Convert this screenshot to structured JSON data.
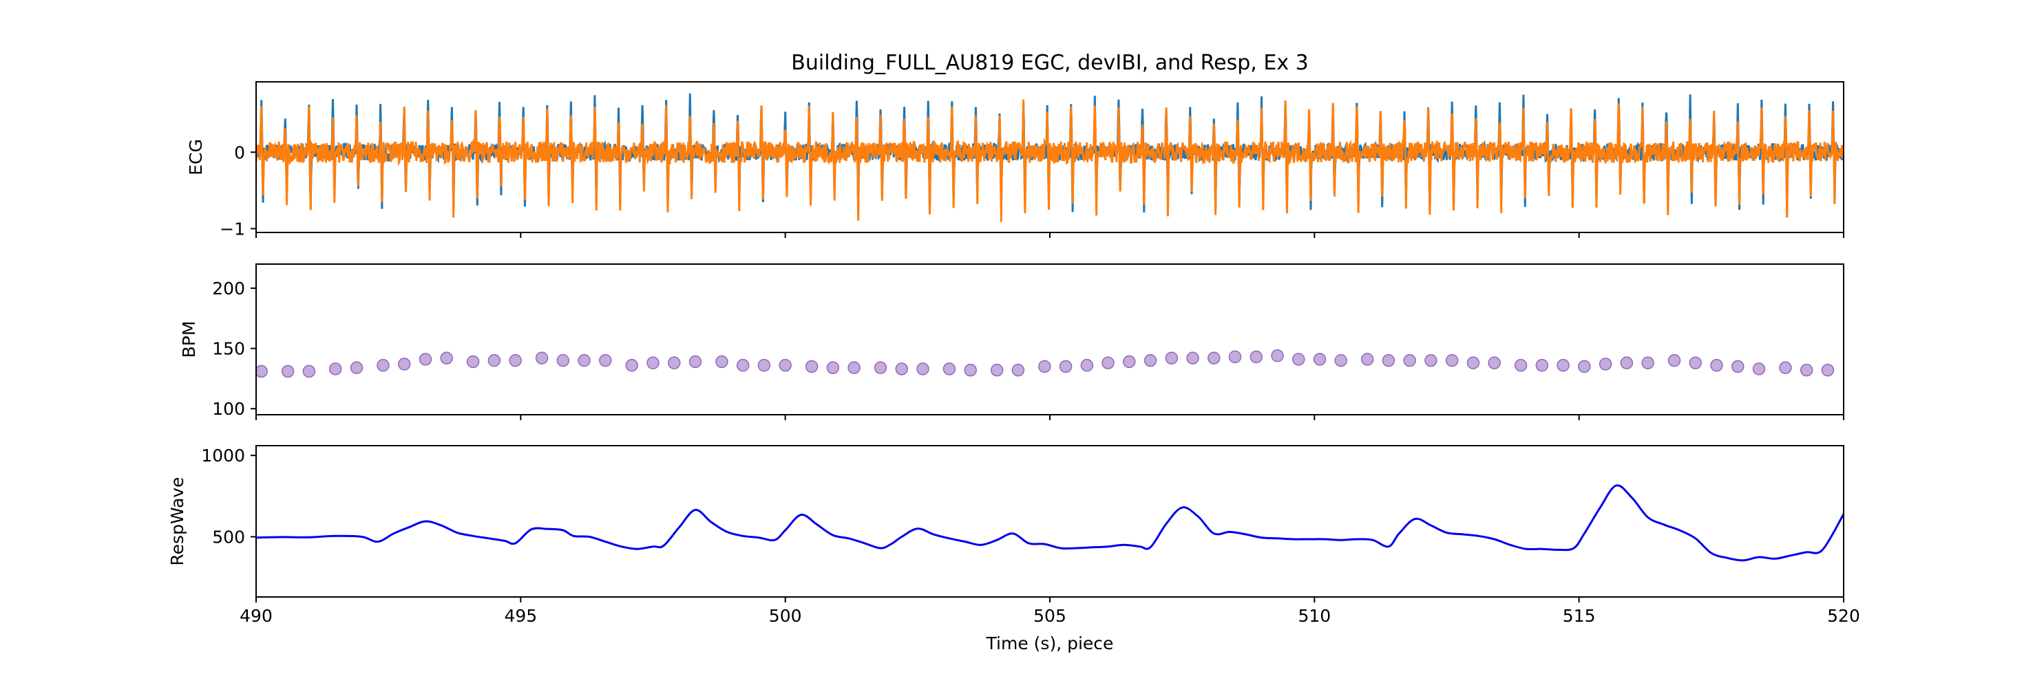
{
  "figure": {
    "title": "Building_FULL_AU819 EGC, devIBI, and Resp, Ex 3",
    "xlabel": "Time (s), piece"
  },
  "chart_data": [
    {
      "type": "line",
      "panel": "ecg",
      "ylabel": "ECG",
      "xlim": [
        490,
        520
      ],
      "ylim": [
        -1.05,
        0.92
      ],
      "xticks": [
        490,
        495,
        500,
        505,
        510,
        515,
        520
      ],
      "yticks": [
        -1,
        0
      ],
      "grid": false,
      "series": [
        {
          "color": "#1f77b4",
          "r_peak_times": [
            490.1,
            490.55,
            491.0,
            491.45,
            491.9,
            492.35,
            492.8,
            493.25,
            493.7,
            494.15,
            494.6,
            495.05,
            495.5,
            495.95,
            496.4,
            496.85,
            497.3,
            497.75,
            498.2,
            498.65,
            499.1,
            499.55,
            500.0,
            500.45,
            500.9,
            501.35,
            501.8,
            502.25,
            502.7,
            503.15,
            503.6,
            504.05,
            504.5,
            504.95,
            505.4,
            505.85,
            506.3,
            506.75,
            507.2,
            507.65,
            508.1,
            508.55,
            509.0,
            509.45,
            509.9,
            510.35,
            510.8,
            511.25,
            511.7,
            512.15,
            512.6,
            513.05,
            513.5,
            513.95,
            514.4,
            514.85,
            515.3,
            515.75,
            516.2,
            516.65,
            517.1,
            517.55,
            518.0,
            518.45,
            518.9,
            519.35,
            519.8
          ],
          "r_peak_amplitude": 0.6,
          "s_trough_amplitude": -0.65
        },
        {
          "color": "#ff7f0e",
          "r_peak_times": [
            490.1,
            490.55,
            491.0,
            491.45,
            491.9,
            492.35,
            492.8,
            493.25,
            493.7,
            494.15,
            494.6,
            495.05,
            495.5,
            495.95,
            496.4,
            496.85,
            497.3,
            497.75,
            498.2,
            498.65,
            499.1,
            499.55,
            500.0,
            500.45,
            500.9,
            501.35,
            501.8,
            502.25,
            502.7,
            503.15,
            503.6,
            504.05,
            504.5,
            504.95,
            505.4,
            505.85,
            506.3,
            506.75,
            507.2,
            507.65,
            508.1,
            508.55,
            509.0,
            509.45,
            509.9,
            510.35,
            510.8,
            511.25,
            511.7,
            512.15,
            512.6,
            513.05,
            513.5,
            513.95,
            514.4,
            514.85,
            515.3,
            515.75,
            516.2,
            516.65,
            517.1,
            517.55,
            518.0,
            518.45,
            518.9,
            519.35,
            519.8
          ],
          "r_peak_amplitude": 0.5,
          "s_trough_amplitude": -0.7
        }
      ]
    },
    {
      "type": "scatter",
      "panel": "bpm",
      "ylabel": "BPM",
      "xlim": [
        490,
        520
      ],
      "ylim": [
        95,
        220
      ],
      "xticks": [
        490,
        495,
        500,
        505,
        510,
        515,
        520
      ],
      "yticks": [
        100,
        150,
        200
      ],
      "grid": false,
      "series": [
        {
          "color": "#9467bd",
          "x": [
            490.1,
            490.6,
            491.0,
            491.5,
            491.9,
            492.4,
            492.8,
            493.2,
            493.6,
            494.1,
            494.5,
            494.9,
            495.4,
            495.8,
            496.2,
            496.6,
            497.1,
            497.5,
            497.9,
            498.3,
            498.8,
            499.2,
            499.6,
            500.0,
            500.5,
            500.9,
            501.3,
            501.8,
            502.2,
            502.6,
            503.1,
            503.5,
            504.0,
            504.4,
            504.9,
            505.3,
            505.7,
            506.1,
            506.5,
            506.9,
            507.3,
            507.7,
            508.1,
            508.5,
            508.9,
            509.3,
            509.7,
            510.1,
            510.5,
            511.0,
            511.4,
            511.8,
            512.2,
            512.6,
            513.0,
            513.4,
            513.9,
            514.3,
            514.7,
            515.1,
            515.5,
            515.9,
            516.3,
            516.8,
            517.2,
            517.6,
            518.0,
            518.4,
            518.9,
            519.3,
            519.7
          ],
          "y": [
            131,
            131,
            131,
            133,
            134,
            136,
            137,
            141,
            142,
            139,
            140,
            140,
            142,
            140,
            140,
            140,
            136,
            138,
            138,
            139,
            139,
            136,
            136,
            136,
            135,
            134,
            134,
            134,
            133,
            133,
            133,
            132,
            132,
            132,
            135,
            135,
            136,
            138,
            139,
            140,
            142,
            142,
            142,
            143,
            143,
            144,
            141,
            141,
            140,
            141,
            140,
            140,
            140,
            140,
            138,
            138,
            136,
            136,
            136,
            135,
            137,
            138,
            138,
            140,
            138,
            136,
            135,
            133,
            134,
            132,
            132
          ]
        }
      ]
    },
    {
      "type": "line",
      "panel": "resp",
      "ylabel": "RespWave",
      "xlim": [
        490,
        520
      ],
      "ylim": [
        130,
        1060
      ],
      "xticks": [
        490,
        495,
        500,
        505,
        510,
        515,
        520
      ],
      "xtick_labels": [
        "490",
        "495",
        "500",
        "505",
        "510",
        "515",
        "520"
      ],
      "yticks": [
        500,
        1000
      ],
      "grid": false,
      "series": [
        {
          "color": "#0000ee",
          "x": [
            490.0,
            490.5,
            491.0,
            491.5,
            492.0,
            492.3,
            492.6,
            492.9,
            493.2,
            493.5,
            493.8,
            494.1,
            494.4,
            494.7,
            494.9,
            495.2,
            495.5,
            495.8,
            496.0,
            496.3,
            496.6,
            496.9,
            497.2,
            497.5,
            497.7,
            498.0,
            498.3,
            498.6,
            498.9,
            499.2,
            499.5,
            499.8,
            500.0,
            500.3,
            500.6,
            500.9,
            501.2,
            501.5,
            501.8,
            502.0,
            502.2,
            502.5,
            502.8,
            503.1,
            503.4,
            503.7,
            504.0,
            504.3,
            504.6,
            504.9,
            505.2,
            505.5,
            505.8,
            506.1,
            506.4,
            506.7,
            506.9,
            507.2,
            507.5,
            507.8,
            508.1,
            508.4,
            508.7,
            509.0,
            509.3,
            509.6,
            509.9,
            510.2,
            510.5,
            510.8,
            511.1,
            511.4,
            511.6,
            511.9,
            512.2,
            512.5,
            512.8,
            513.1,
            513.4,
            513.7,
            514.0,
            514.3,
            514.6,
            514.9,
            515.1,
            515.4,
            515.7,
            516.0,
            516.3,
            516.6,
            516.9,
            517.2,
            517.5,
            517.8,
            518.1,
            518.4,
            518.7,
            519.0,
            519.3,
            519.6,
            520.0
          ],
          "y": [
            495,
            498,
            497,
            505,
            500,
            470,
            520,
            560,
            595,
            570,
            525,
            505,
            490,
            475,
            460,
            545,
            548,
            540,
            505,
            500,
            470,
            440,
            425,
            440,
            445,
            560,
            665,
            590,
            530,
            505,
            495,
            480,
            540,
            635,
            575,
            510,
            490,
            460,
            430,
            455,
            500,
            550,
            515,
            490,
            470,
            450,
            480,
            520,
            460,
            455,
            430,
            430,
            435,
            440,
            450,
            440,
            435,
            580,
            680,
            625,
            520,
            530,
            515,
            495,
            490,
            485,
            485,
            485,
            480,
            485,
            480,
            440,
            520,
            610,
            570,
            525,
            515,
            505,
            485,
            450,
            425,
            425,
            420,
            430,
            520,
            680,
            815,
            740,
            620,
            575,
            540,
            490,
            400,
            370,
            355,
            375,
            365,
            385,
            405,
            420,
            640
          ]
        }
      ]
    }
  ]
}
